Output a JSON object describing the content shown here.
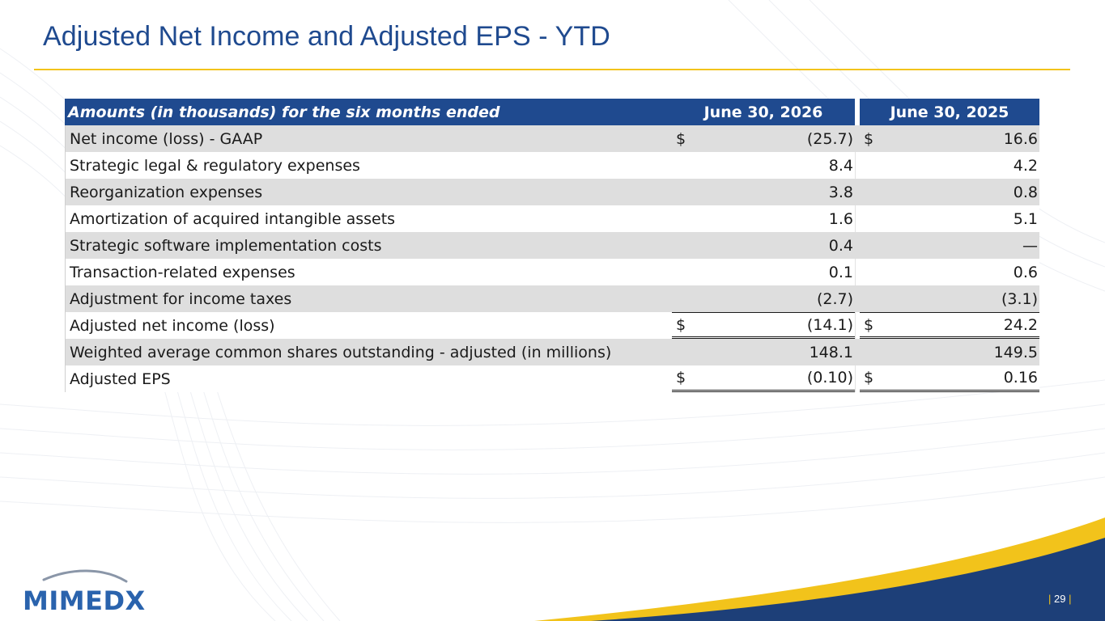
{
  "slide": {
    "title": "Adjusted Net Income and Adjusted EPS - YTD",
    "page_number": "29",
    "page_bar_left": "|",
    "page_bar_right": "|"
  },
  "logo": {
    "text": "MIMEDX",
    "icon": "mimedx-arc-logo"
  },
  "colors": {
    "brand_blue": "#1f4a8f",
    "accent_gold": "#f2c31b",
    "row_shade": "#dedede",
    "footer_navy": "#1d3f78"
  },
  "table": {
    "header": {
      "description": "Amounts (in thousands) for the six months ended",
      "col1": "June 30, 2026",
      "col2": "June 30, 2025"
    },
    "rows": [
      {
        "label": "Net income (loss) - GAAP",
        "cur1": "$",
        "v1": "(25.7)",
        "cur2": "$",
        "v2": "16.6"
      },
      {
        "label": "Strategic legal & regulatory expenses",
        "cur1": "",
        "v1": "8.4",
        "cur2": "",
        "v2": "4.2"
      },
      {
        "label": "Reorganization expenses",
        "cur1": "",
        "v1": "3.8",
        "cur2": "",
        "v2": "0.8"
      },
      {
        "label": "Amortization of acquired intangible assets",
        "cur1": "",
        "v1": "1.6",
        "cur2": "",
        "v2": "5.1"
      },
      {
        "label": "Strategic software implementation costs",
        "cur1": "",
        "v1": "0.4",
        "cur2": "",
        "v2": "—"
      },
      {
        "label": "Transaction-related expenses",
        "cur1": "",
        "v1": "0.1",
        "cur2": "",
        "v2": "0.6"
      },
      {
        "label": "Adjustment for income taxes",
        "cur1": "",
        "v1": "(2.7)",
        "cur2": "",
        "v2": "(3.1)"
      },
      {
        "label": "Adjusted net income (loss)",
        "cur1": "$",
        "v1": "(14.1)",
        "cur2": "$",
        "v2": "24.2"
      },
      {
        "label": "Weighted average common shares outstanding - adjusted (in millions)",
        "cur1": "",
        "v1": "148.1",
        "cur2": "",
        "v2": "149.5"
      },
      {
        "label": "Adjusted EPS",
        "cur1": "$",
        "v1": "(0.10)",
        "cur2": "$",
        "v2": "0.16"
      }
    ]
  }
}
